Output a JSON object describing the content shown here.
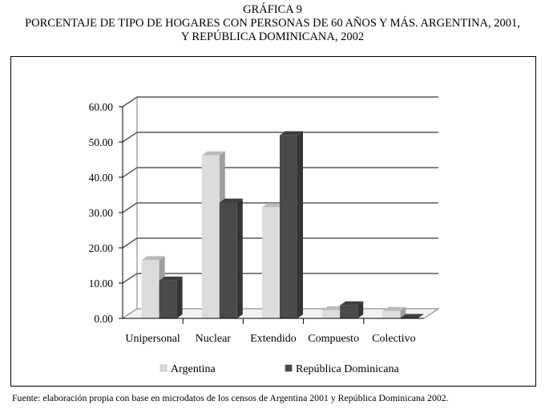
{
  "header": {
    "figure_label": "GRÁFICA 9",
    "title_line1": "PORCENTAJE DE TIPO DE HOGARES CON PERSONAS  DE 60 AÑOS Y MÁS. ARGENTINA, 2001,",
    "title_line2": "Y REPÚBLICA DOMINICANA, 2002"
  },
  "footer": {
    "source": "Fuente: elaboración propia con base en microdatos de los censos de Argentina 2001 y República Dominicana 2002."
  },
  "chart_data": {
    "type": "bar",
    "style": "3d-clustered",
    "categories": [
      "Unipersonal",
      "Nuclear",
      "Extendido",
      "Compuesto",
      "Colectivo"
    ],
    "series": [
      {
        "name": "Argentina",
        "values": [
          16.5,
          46.2,
          31.5,
          2.3,
          2.1
        ],
        "color": "#dcdcdc"
      },
      {
        "name": "República Dominicana",
        "values": [
          10.7,
          32.8,
          51.9,
          3.7,
          0.1
        ],
        "color": "#4a4a4a"
      }
    ],
    "yticks": [
      "0.00",
      "10.00",
      "20.00",
      "30.00",
      "40.00",
      "50.00",
      "60.00"
    ],
    "ylim": [
      0,
      60
    ],
    "grid": true,
    "legend_position": "bottom"
  }
}
